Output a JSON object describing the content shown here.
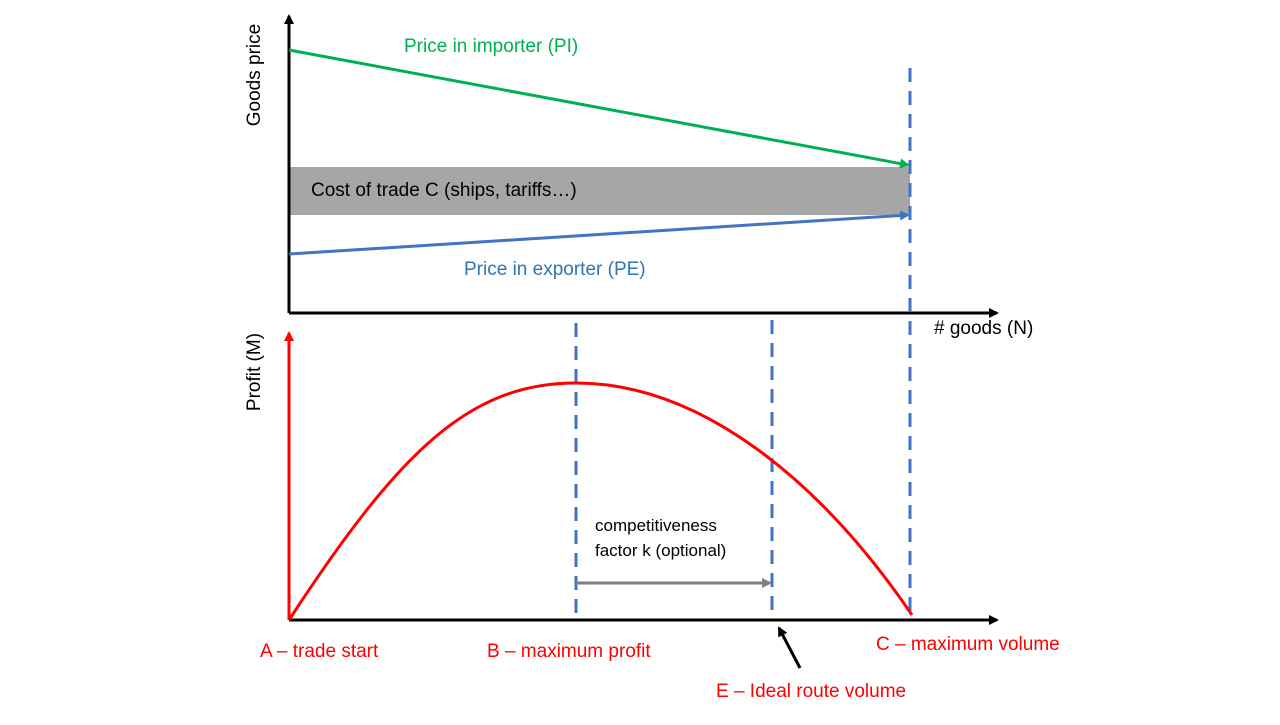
{
  "top_panel": {
    "y_axis_label": "Goods price",
    "importer_label": "Price in importer (PI)",
    "cost_label": "Cost of trade C (ships, tariffs…)",
    "exporter_label": "Price in exporter (PE)",
    "x_axis_label": "# goods (N)"
  },
  "bottom_panel": {
    "y_axis_label": "Profit (M)",
    "k_note": [
      "competitiveness",
      "factor k (optional)"
    ],
    "points": [
      "A – trade start",
      "B – maximum profit",
      "C – maximum volume",
      "E – Ideal route volume"
    ]
  }
}
